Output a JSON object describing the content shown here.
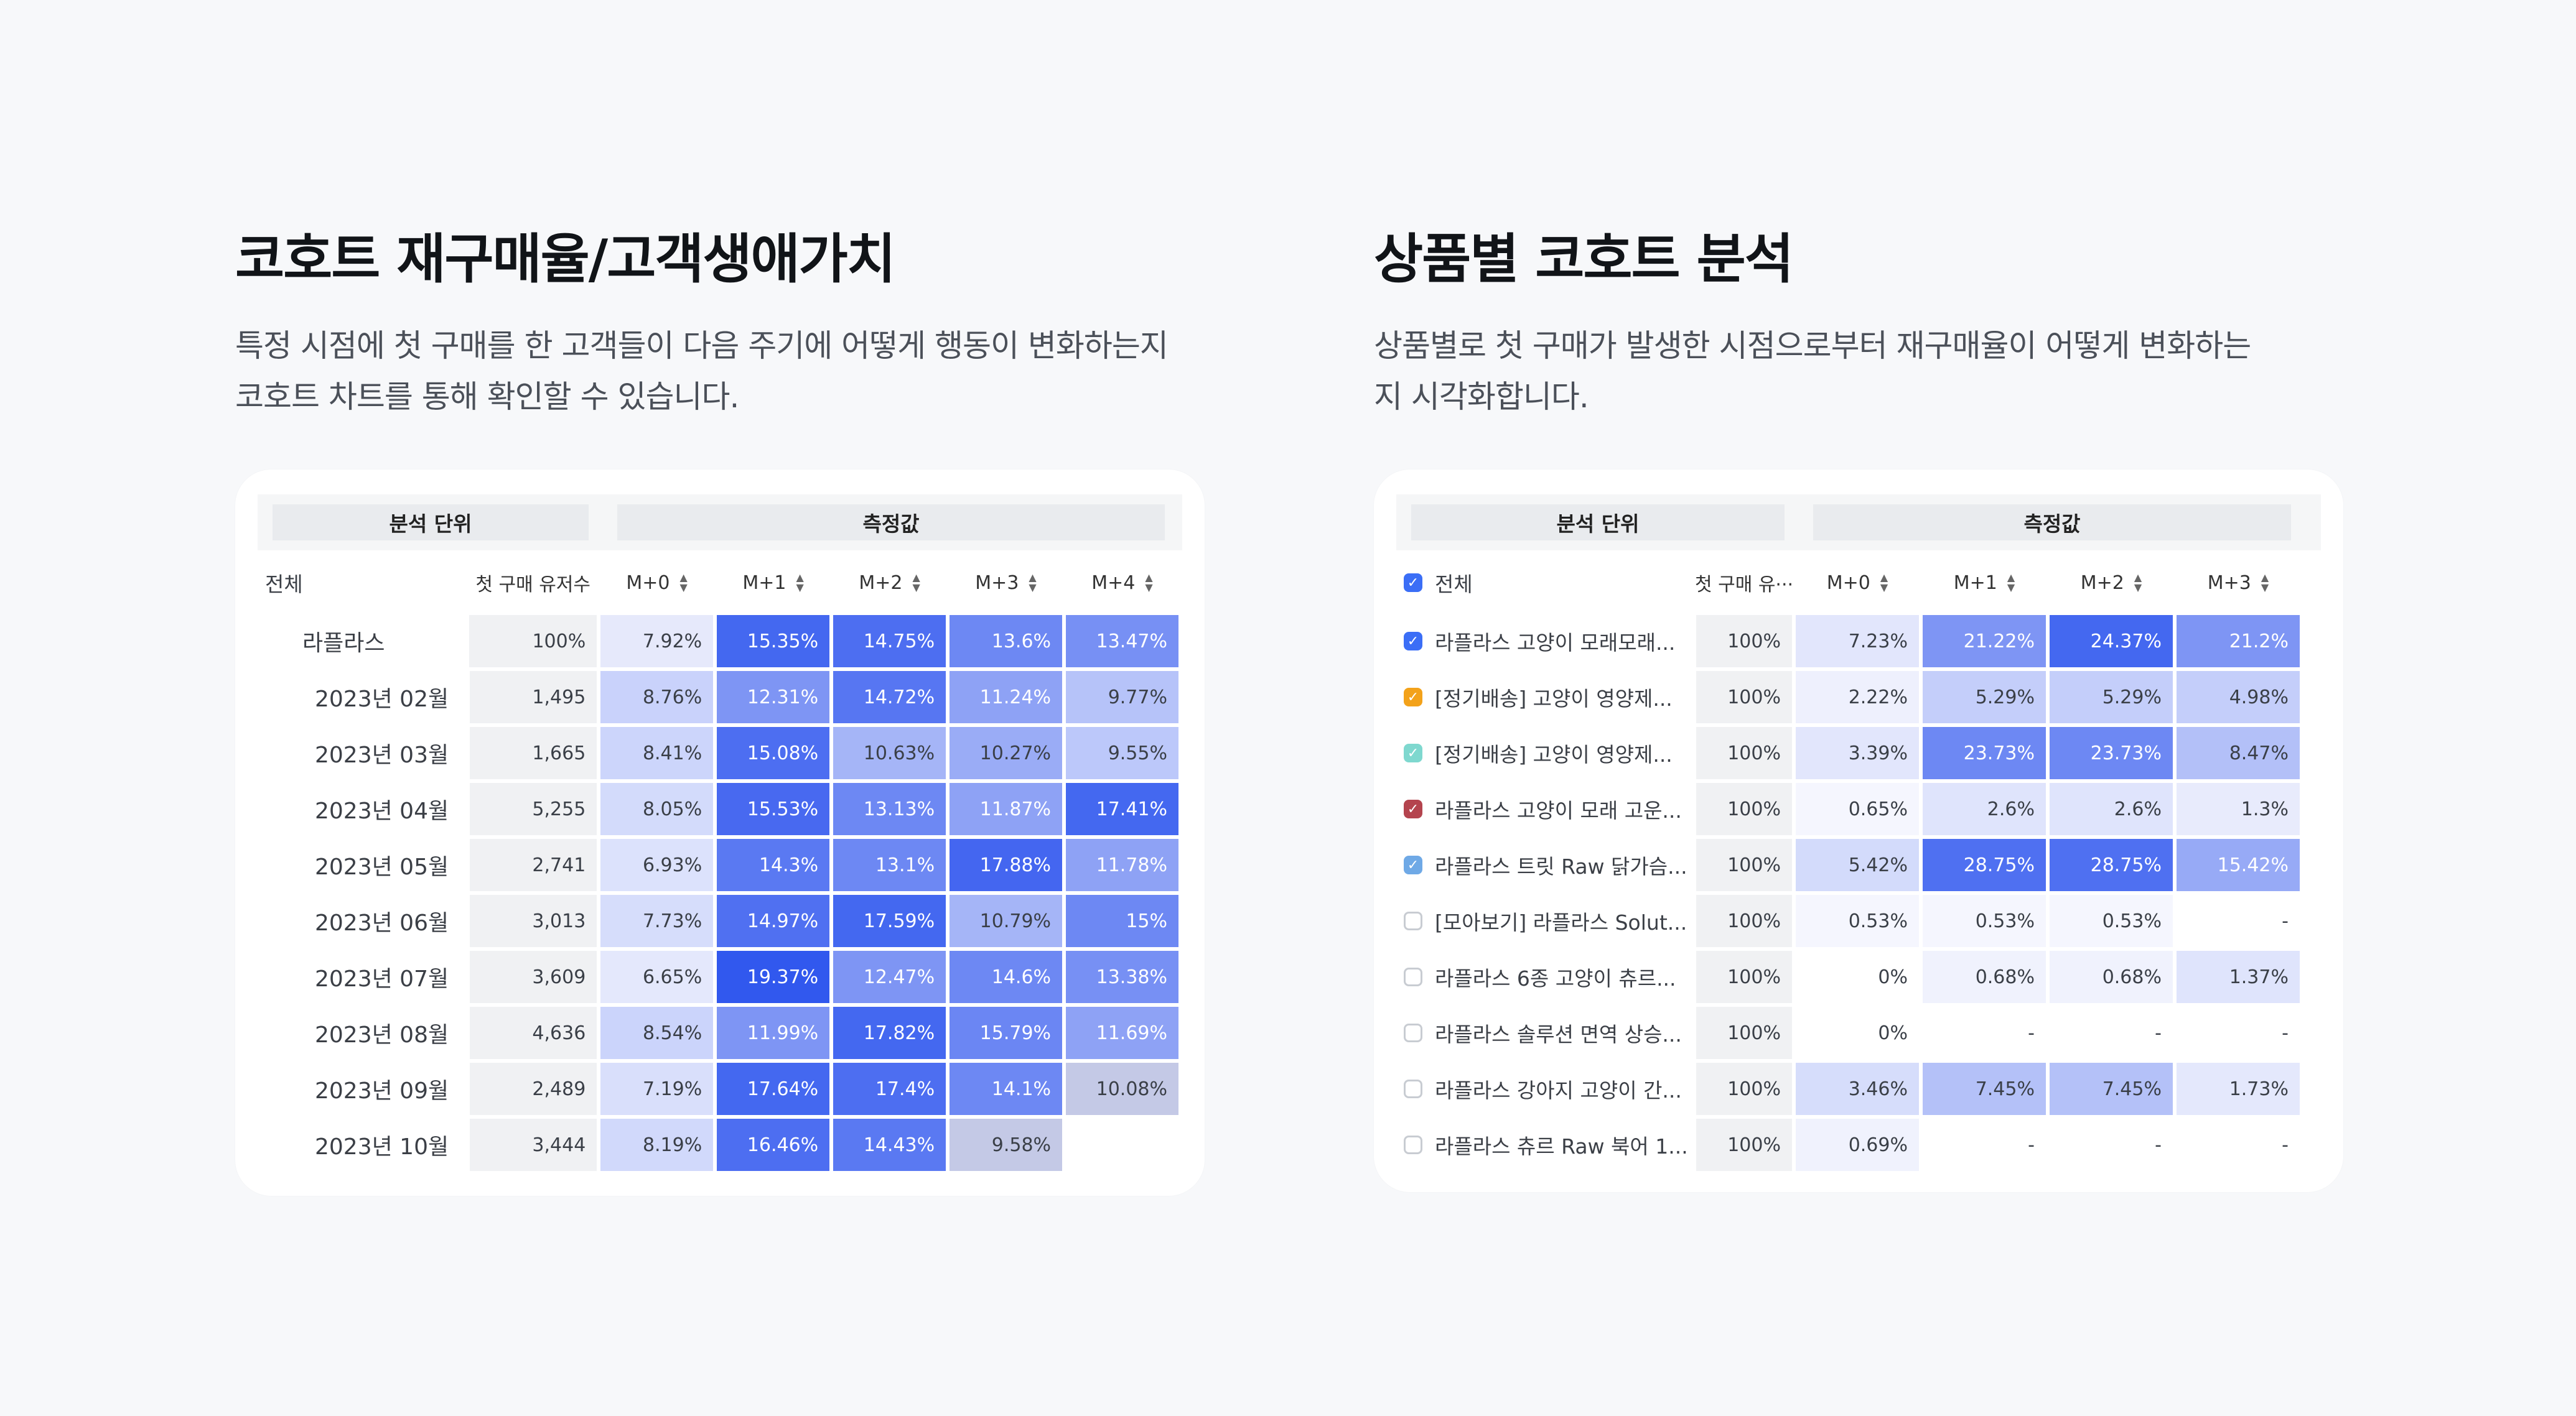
{
  "left_section": {
    "title": "코호트 재구매율/고객생애가치",
    "desc_line1": "특정 시점에 첫 구매를 한 고객들이 다음 주기에 어떻게 행동이 변화하는지",
    "desc_line2": "코호트 차트를 통해 확인할 수 있습니다."
  },
  "right_section": {
    "title": "상품별 코호트 분석",
    "desc_line1": "상품별로 첫 구매가 발생한 시점으로부터 재구매율이 어떻게 변화하는",
    "desc_line2": "지 시각화합니다."
  },
  "cohort_table": {
    "group_label": "분석 단위",
    "measure_label": "측정값",
    "all_label": "전체",
    "count_header": "첫 구매 유저수",
    "month_headers": [
      "M+0",
      "M+1",
      "M+2",
      "M+3",
      "M+4"
    ],
    "total_row": {
      "name": "라플라스",
      "count": "100%",
      "values": [
        "7.92%",
        "15.35%",
        "14.75%",
        "13.6%",
        "13.47%"
      ]
    },
    "rows": [
      {
        "name": "2023년 02월",
        "count": "1,495",
        "values": [
          "8.76%",
          "12.31%",
          "14.72%",
          "11.24%",
          "9.77%"
        ]
      },
      {
        "name": "2023년 03월",
        "count": "1,665",
        "values": [
          "8.41%",
          "15.08%",
          "10.63%",
          "10.27%",
          "9.55%"
        ]
      },
      {
        "name": "2023년 04월",
        "count": "5,255",
        "values": [
          "8.05%",
          "15.53%",
          "13.13%",
          "11.87%",
          "17.41%"
        ]
      },
      {
        "name": "2023년 05월",
        "count": "2,741",
        "values": [
          "6.93%",
          "14.3%",
          "13.1%",
          "17.88%",
          "11.78%"
        ]
      },
      {
        "name": "2023년 06월",
        "count": "3,013",
        "values": [
          "7.73%",
          "14.97%",
          "17.59%",
          "10.79%",
          "15%"
        ]
      },
      {
        "name": "2023년 07월",
        "count": "3,609",
        "values": [
          "6.65%",
          "19.37%",
          "12.47%",
          "14.6%",
          "13.38%"
        ]
      },
      {
        "name": "2023년 08월",
        "count": "4,636",
        "values": [
          "8.54%",
          "11.99%",
          "17.82%",
          "15.79%",
          "11.69%"
        ]
      },
      {
        "name": "2023년 09월",
        "count": "2,489",
        "values": [
          "7.19%",
          "17.64%",
          "17.4%",
          "14.1%",
          "10.08%"
        ]
      },
      {
        "name": "2023년 10월",
        "count": "3,444",
        "values": [
          "8.19%",
          "16.46%",
          "14.43%",
          "9.58%",
          ""
        ]
      }
    ],
    "cell_colors": [
      [
        "#e6e9fb",
        "#4468f0",
        "#4d6ef1",
        "#6d88f3",
        "#7790f4"
      ],
      [
        "#c9d2fb",
        "#7e95f4",
        "#5776f2",
        "#8ea2f5",
        "#b6c3f9"
      ],
      [
        "#ccd5fb",
        "#4d6ef1",
        "#a5b5f7",
        "#9aacf6",
        "#bcc8fa"
      ],
      [
        "#d3dbfb",
        "#4869f0",
        "#6d88f3",
        "#8ea2f5",
        "#4468f0"
      ],
      [
        "#dce2fc",
        "#5a79f2",
        "#6d88f3",
        "#4466f0",
        "#8ea2f5"
      ],
      [
        "#d6ddfb",
        "#5070f1",
        "#4468f0",
        "#a5b5f7",
        "#6d88f3"
      ],
      [
        "#e4e8fc",
        "#3158ee",
        "#7e95f4",
        "#6d88f3",
        "#7790f4"
      ],
      [
        "#cbd4fb",
        "#7e95f4",
        "#4468f0",
        "#6b86f3",
        "#8ea2f5"
      ],
      [
        "#d9dffb",
        "#4468f0",
        "#4d6ef1",
        "#6d88f3",
        "#c4c9e6"
      ],
      [
        "#d1d9fb",
        "#4d6ef1",
        "#5a79f2",
        "#c4c9e6",
        "#ffffff"
      ]
    ]
  },
  "product_table": {
    "group_label": "분석 단위",
    "measure_label": "측정값",
    "all_label": "전체",
    "count_header": "첫 구매 유···",
    "month_headers": [
      "M+0",
      "M+1",
      "M+2",
      "M+3"
    ],
    "rows": [
      {
        "name": "라플라스 고양이 모래모래...",
        "check": "#3b6ef6",
        "checked": true,
        "count": "100%",
        "values": [
          "7.23%",
          "21.22%",
          "24.37%",
          "21.2%"
        ]
      },
      {
        "name": "[정기배송] 고양이 영양제...",
        "check": "#f3a21a",
        "checked": true,
        "count": "100%",
        "values": [
          "2.22%",
          "5.29%",
          "5.29%",
          "4.98%"
        ]
      },
      {
        "name": "[정기배송] 고양이 영양제...",
        "check": "#7fd8cf",
        "checked": true,
        "count": "100%",
        "values": [
          "3.39%",
          "23.73%",
          "23.73%",
          "8.47%"
        ]
      },
      {
        "name": "라플라스 고양이 모래 고운...",
        "check": "#b4444e",
        "checked": true,
        "count": "100%",
        "values": [
          "0.65%",
          "2.6%",
          "2.6%",
          "1.3%"
        ]
      },
      {
        "name": "라플라스 트릿 Raw 닭가슴...",
        "check": "#6fa9e6",
        "checked": true,
        "count": "100%",
        "values": [
          "5.42%",
          "28.75%",
          "28.75%",
          "15.42%"
        ]
      },
      {
        "name": "[모아보기] 라플라스 Solut...",
        "check": "",
        "checked": false,
        "count": "100%",
        "values": [
          "0.53%",
          "0.53%",
          "0.53%",
          "-"
        ]
      },
      {
        "name": "라플라스 6종 고양이 츄르...",
        "check": "",
        "checked": false,
        "count": "100%",
        "values": [
          "0%",
          "0.68%",
          "0.68%",
          "1.37%"
        ]
      },
      {
        "name": "라플라스 솔루션 면역 상승...",
        "check": "",
        "checked": false,
        "count": "100%",
        "values": [
          "0%",
          "-",
          "-",
          "-"
        ]
      },
      {
        "name": "라플라스 강아지 고양이 간...",
        "check": "",
        "checked": false,
        "count": "100%",
        "values": [
          "3.46%",
          "7.45%",
          "7.45%",
          "1.73%"
        ]
      },
      {
        "name": "라플라스 츄르 Raw 북어 1...",
        "check": "",
        "checked": false,
        "count": "100%",
        "values": [
          "0.69%",
          "-",
          "-",
          "-"
        ]
      }
    ],
    "cell_colors": [
      [
        "#e2e6fc",
        "#7e95f4",
        "#4468f0",
        "#7e95f4"
      ],
      [
        "#eef0fd",
        "#c4cefa",
        "#c4cefa",
        "#c4cefa"
      ],
      [
        "#e2e6fc",
        "#6d88f3",
        "#6d88f3",
        "#b3c0f8"
      ],
      [
        "#f5f6fe",
        "#dfe4fc",
        "#dfe4fc",
        "#e8ebfc"
      ],
      [
        "#d3dbfb",
        "#4f70f1",
        "#4f70f1",
        "#97aaf6"
      ],
      [
        "#f5f6fe",
        "#f5f6fe",
        "#f5f6fe",
        "#ffffff"
      ],
      [
        "#ffffff",
        "#f0f2fd",
        "#f0f2fd",
        "#dfe4fc"
      ],
      [
        "#ffffff",
        "#ffffff",
        "#ffffff",
        "#ffffff"
      ],
      [
        "#d6ddfb",
        "#b4c1f8",
        "#b4c1f8",
        "#e4e8fc"
      ],
      [
        "#f0f2fd",
        "#ffffff",
        "#ffffff",
        "#ffffff"
      ]
    ]
  }
}
